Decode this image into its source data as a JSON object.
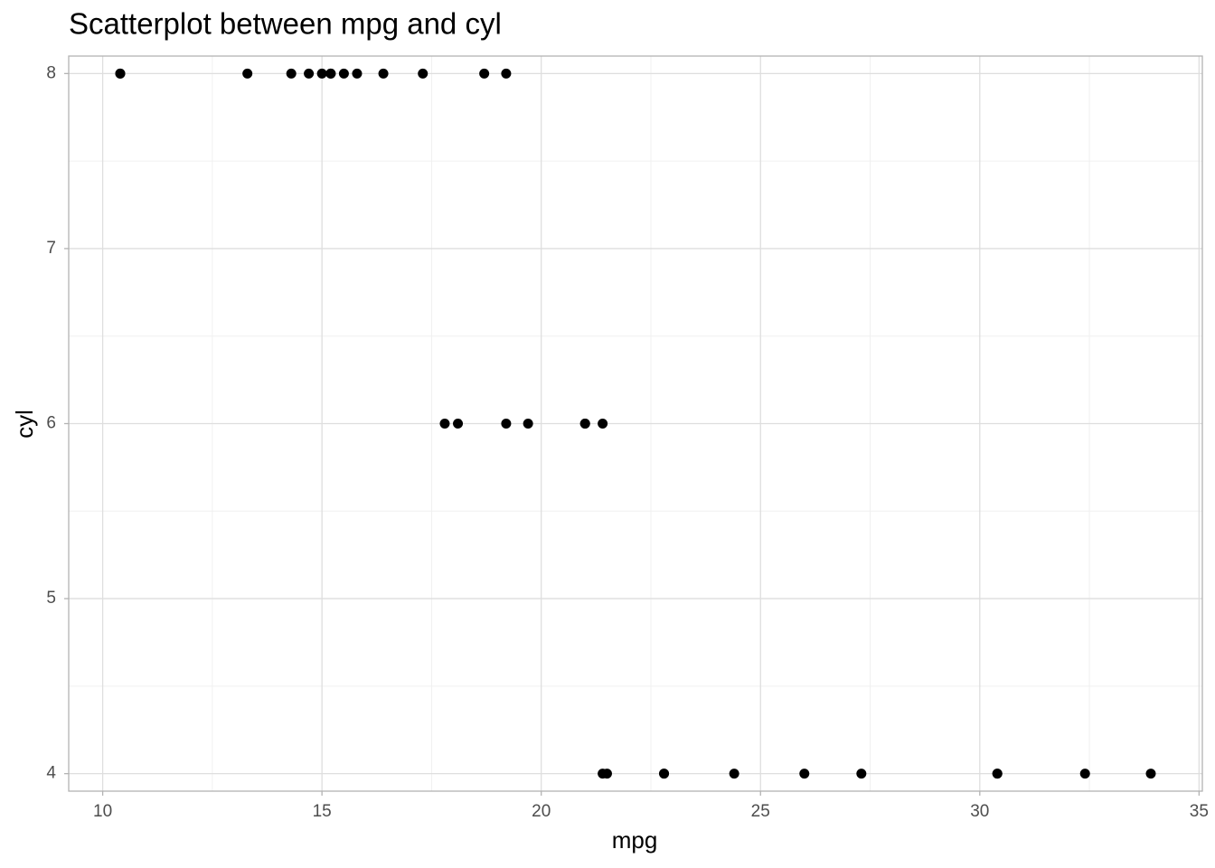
{
  "chart_data": {
    "type": "scatter",
    "title": "Scatterplot between mpg and cyl",
    "x_label": "mpg",
    "y_label": "cyl",
    "series": [
      {
        "color": "#000000",
        "x": [
          21.0,
          21.0,
          22.8,
          21.4,
          18.7,
          18.1,
          14.3,
          24.4,
          22.8,
          19.2,
          17.8,
          16.4,
          17.3,
          15.2,
          10.4,
          10.4,
          14.7,
          32.4,
          30.4,
          33.9,
          21.5,
          15.5,
          15.2,
          13.3,
          19.2,
          27.3,
          26.0,
          30.4,
          15.8,
          19.7,
          15.0,
          21.4
        ],
        "values": [
          6,
          6,
          4,
          6,
          8,
          6,
          8,
          4,
          4,
          6,
          6,
          8,
          8,
          8,
          8,
          8,
          8,
          4,
          4,
          4,
          4,
          8,
          8,
          8,
          8,
          4,
          4,
          4,
          8,
          6,
          8,
          4
        ]
      }
    ],
    "xlim": [
      9.225,
      35.075
    ],
    "ylim": [
      3.9,
      8.1
    ],
    "xticks": [
      10,
      15,
      20,
      25,
      30,
      35
    ],
    "yticks": [
      4,
      5,
      6,
      7,
      8
    ],
    "grid": true
  }
}
